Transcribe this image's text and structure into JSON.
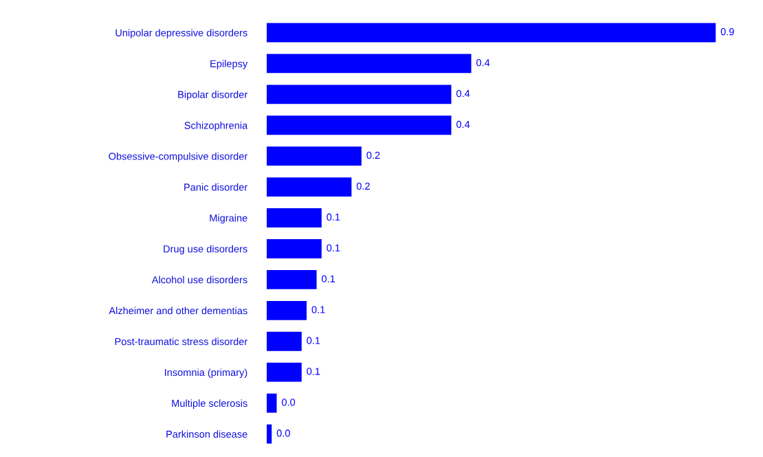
{
  "chart_data": {
    "type": "bar",
    "orientation": "horizontal",
    "color": "#0000ff",
    "categories": [
      "Unipolar depressive disorders",
      "Epilepsy",
      "Bipolar disorder",
      "Schizophrenia",
      "Obsessive-compulsive disorder",
      "Panic disorder",
      "Migraine",
      "Drug use disorders",
      "Alcohol use disorders",
      "Alzheimer and other dementias",
      "Post-traumatic stress disorder",
      "Insomnia (primary)",
      "Multiple sclerosis",
      "Parkinson disease"
    ],
    "values": [
      0.9,
      0.41,
      0.37,
      0.37,
      0.19,
      0.17,
      0.11,
      0.11,
      0.1,
      0.08,
      0.07,
      0.07,
      0.02,
      0.01
    ],
    "value_labels": [
      "0.9",
      "0.4",
      "0.4",
      "0.4",
      "0.2",
      "0.2",
      "0.1",
      "0.1",
      "0.1",
      "0.1",
      "0.1",
      "0.1",
      "0.0",
      "0.0"
    ],
    "tick_labels": "y",
    "grid": false,
    "legend": false
  }
}
